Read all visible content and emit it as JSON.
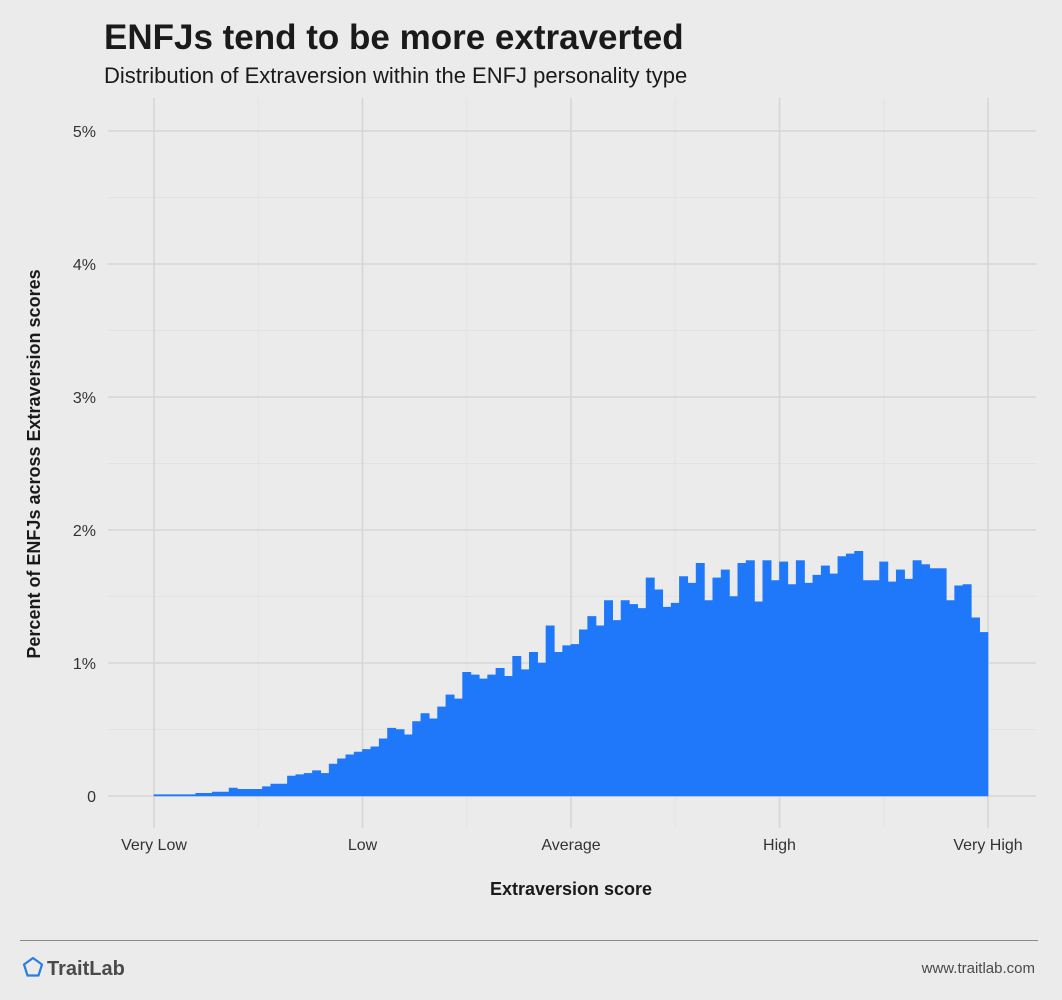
{
  "header": {
    "title": "ENFJs tend to be more extraverted",
    "subtitle": "Distribution of Extraversion within the ENFJ personality type"
  },
  "footer": {
    "brand": "TraitLab",
    "url": "www.traitlab.com"
  },
  "colors": {
    "bar": "#1f78fa",
    "background": "#ebebeb",
    "grid_major": "#d6d6d6",
    "grid_minor": "#e3e3e3",
    "brand_icon": "#2a7de1"
  },
  "icons": {
    "brand": "pentagon-icon"
  },
  "chart_data": {
    "type": "bar",
    "title": "ENFJs tend to be more extraverted",
    "subtitle": "Distribution of Extraversion within the ENFJ personality type",
    "xlabel": "Extraversion score",
    "ylabel": "Percent of ENFJs across Extraversion scores",
    "x_range": [
      0,
      100
    ],
    "x_ticks": [
      {
        "value": 0,
        "label": "Very Low"
      },
      {
        "value": 25,
        "label": "Low"
      },
      {
        "value": 50,
        "label": "Average"
      },
      {
        "value": 75,
        "label": "High"
      },
      {
        "value": 100,
        "label": "Very High"
      }
    ],
    "ylim": [
      0,
      5.2
    ],
    "y_ticks": [
      {
        "value": 0,
        "label": "0"
      },
      {
        "value": 1,
        "label": "1%"
      },
      {
        "value": 2,
        "label": "2%"
      },
      {
        "value": 3,
        "label": "3%"
      },
      {
        "value": 4,
        "label": "4%"
      },
      {
        "value": 5,
        "label": "5%"
      }
    ],
    "grid": true,
    "legend": "none",
    "values": [
      0.01,
      0.01,
      0.01,
      0.01,
      0.01,
      0.02,
      0.02,
      0.03,
      0.03,
      0.06,
      0.05,
      0.05,
      0.05,
      0.07,
      0.09,
      0.09,
      0.15,
      0.16,
      0.17,
      0.19,
      0.17,
      0.24,
      0.28,
      0.31,
      0.33,
      0.35,
      0.37,
      0.43,
      0.51,
      0.5,
      0.46,
      0.56,
      0.62,
      0.58,
      0.67,
      0.76,
      0.73,
      0.93,
      0.91,
      0.88,
      0.91,
      0.96,
      0.9,
      1.05,
      0.95,
      1.08,
      1.0,
      1.28,
      1.08,
      1.13,
      1.14,
      1.25,
      1.35,
      1.28,
      1.47,
      1.32,
      1.47,
      1.44,
      1.41,
      1.64,
      1.55,
      1.42,
      1.45,
      1.65,
      1.6,
      1.75,
      1.47,
      1.64,
      1.7,
      1.5,
      1.75,
      1.77,
      1.46,
      1.77,
      1.62,
      1.76,
      1.59,
      1.77,
      1.6,
      1.66,
      1.73,
      1.67,
      1.8,
      1.82,
      1.84,
      1.62,
      1.62,
      1.76,
      1.61,
      1.7,
      1.63,
      1.77,
      1.74,
      1.71,
      1.71,
      1.47,
      1.58,
      1.59,
      1.34,
      1.23
    ]
  }
}
